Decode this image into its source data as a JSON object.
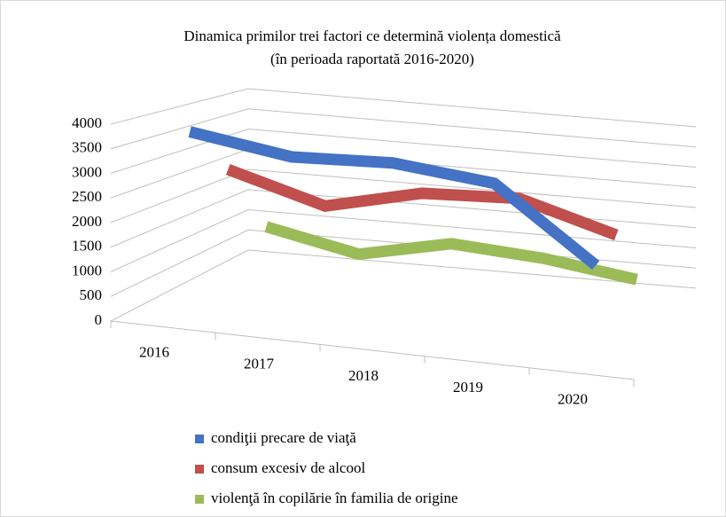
{
  "chart_data": {
    "type": "line3d",
    "title": "Dinamica primilor trei factori ce determină violența domestică",
    "subtitle": "(în perioada raportată 2016-2020)",
    "categories": [
      "2016",
      "2017",
      "2018",
      "2019",
      "2020"
    ],
    "series": [
      {
        "name": "condiţii precare de viaţă",
        "color": "#4472c4",
        "values": [
          3800,
          3500,
          3600,
          3400,
          1900
        ]
      },
      {
        "name": "consum excesiv de alcool",
        "color": "#c0504d",
        "values": [
          2700,
          2100,
          2600,
          2700,
          2100
        ]
      },
      {
        "name": "violenţă în copilărie în familia de origine",
        "color": "#9bbb59",
        "values": [
          1000,
          550,
          1000,
          850,
          550
        ]
      }
    ],
    "ylim": [
      0,
      4000
    ],
    "yticks": [
      0,
      500,
      1000,
      1500,
      2000,
      2500,
      3000,
      3500,
      4000
    ],
    "grid": true
  }
}
